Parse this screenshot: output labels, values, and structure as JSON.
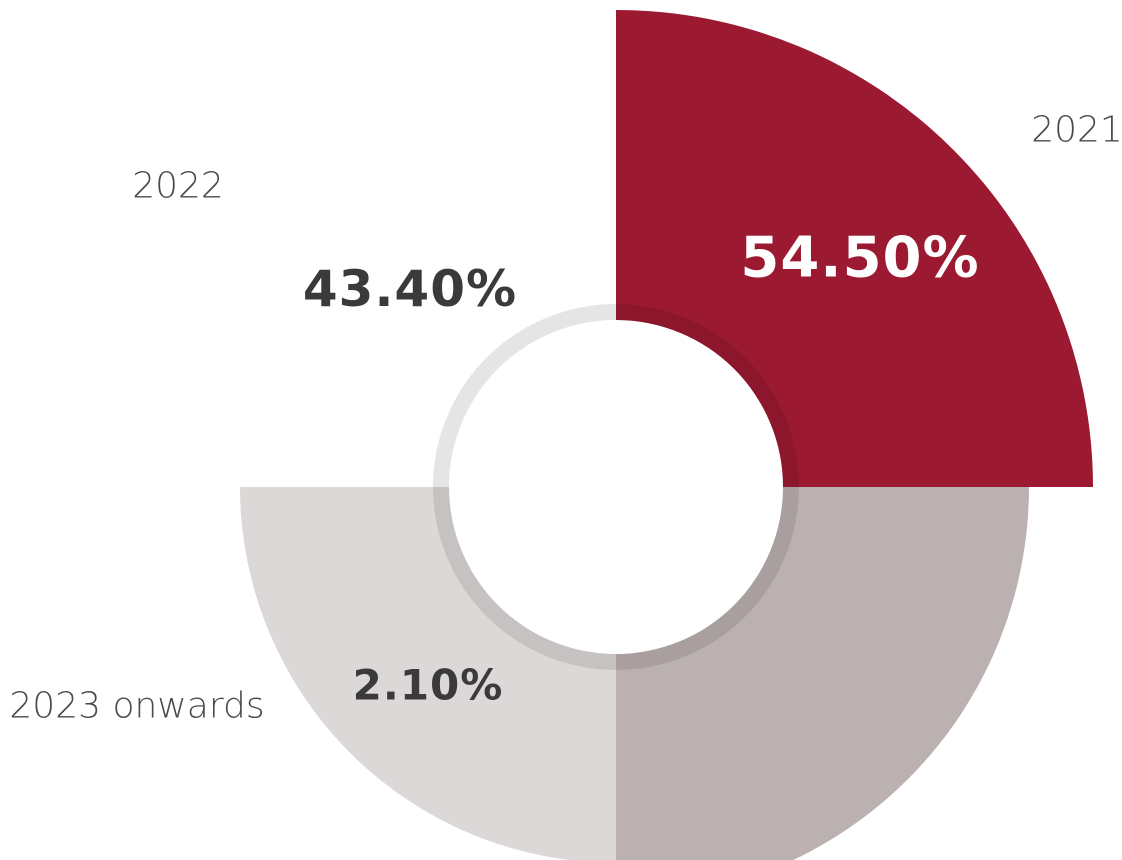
{
  "chart_data": {
    "type": "pie",
    "style": "rose-donut",
    "categories": [
      "2021",
      "2022",
      "2023 onwards"
    ],
    "values": [
      54.5,
      43.4,
      2.1
    ],
    "value_labels": [
      "54.50%",
      "43.40%",
      "2.10%"
    ],
    "colors": [
      "#9c1a31",
      "#bbb1b0",
      "#ddd8d8"
    ],
    "value_label_colors": [
      "#ffffff",
      "#3b3a3a",
      "#3b3a3a"
    ],
    "category_label_color": "#4a4a4a",
    "legend": "none"
  }
}
